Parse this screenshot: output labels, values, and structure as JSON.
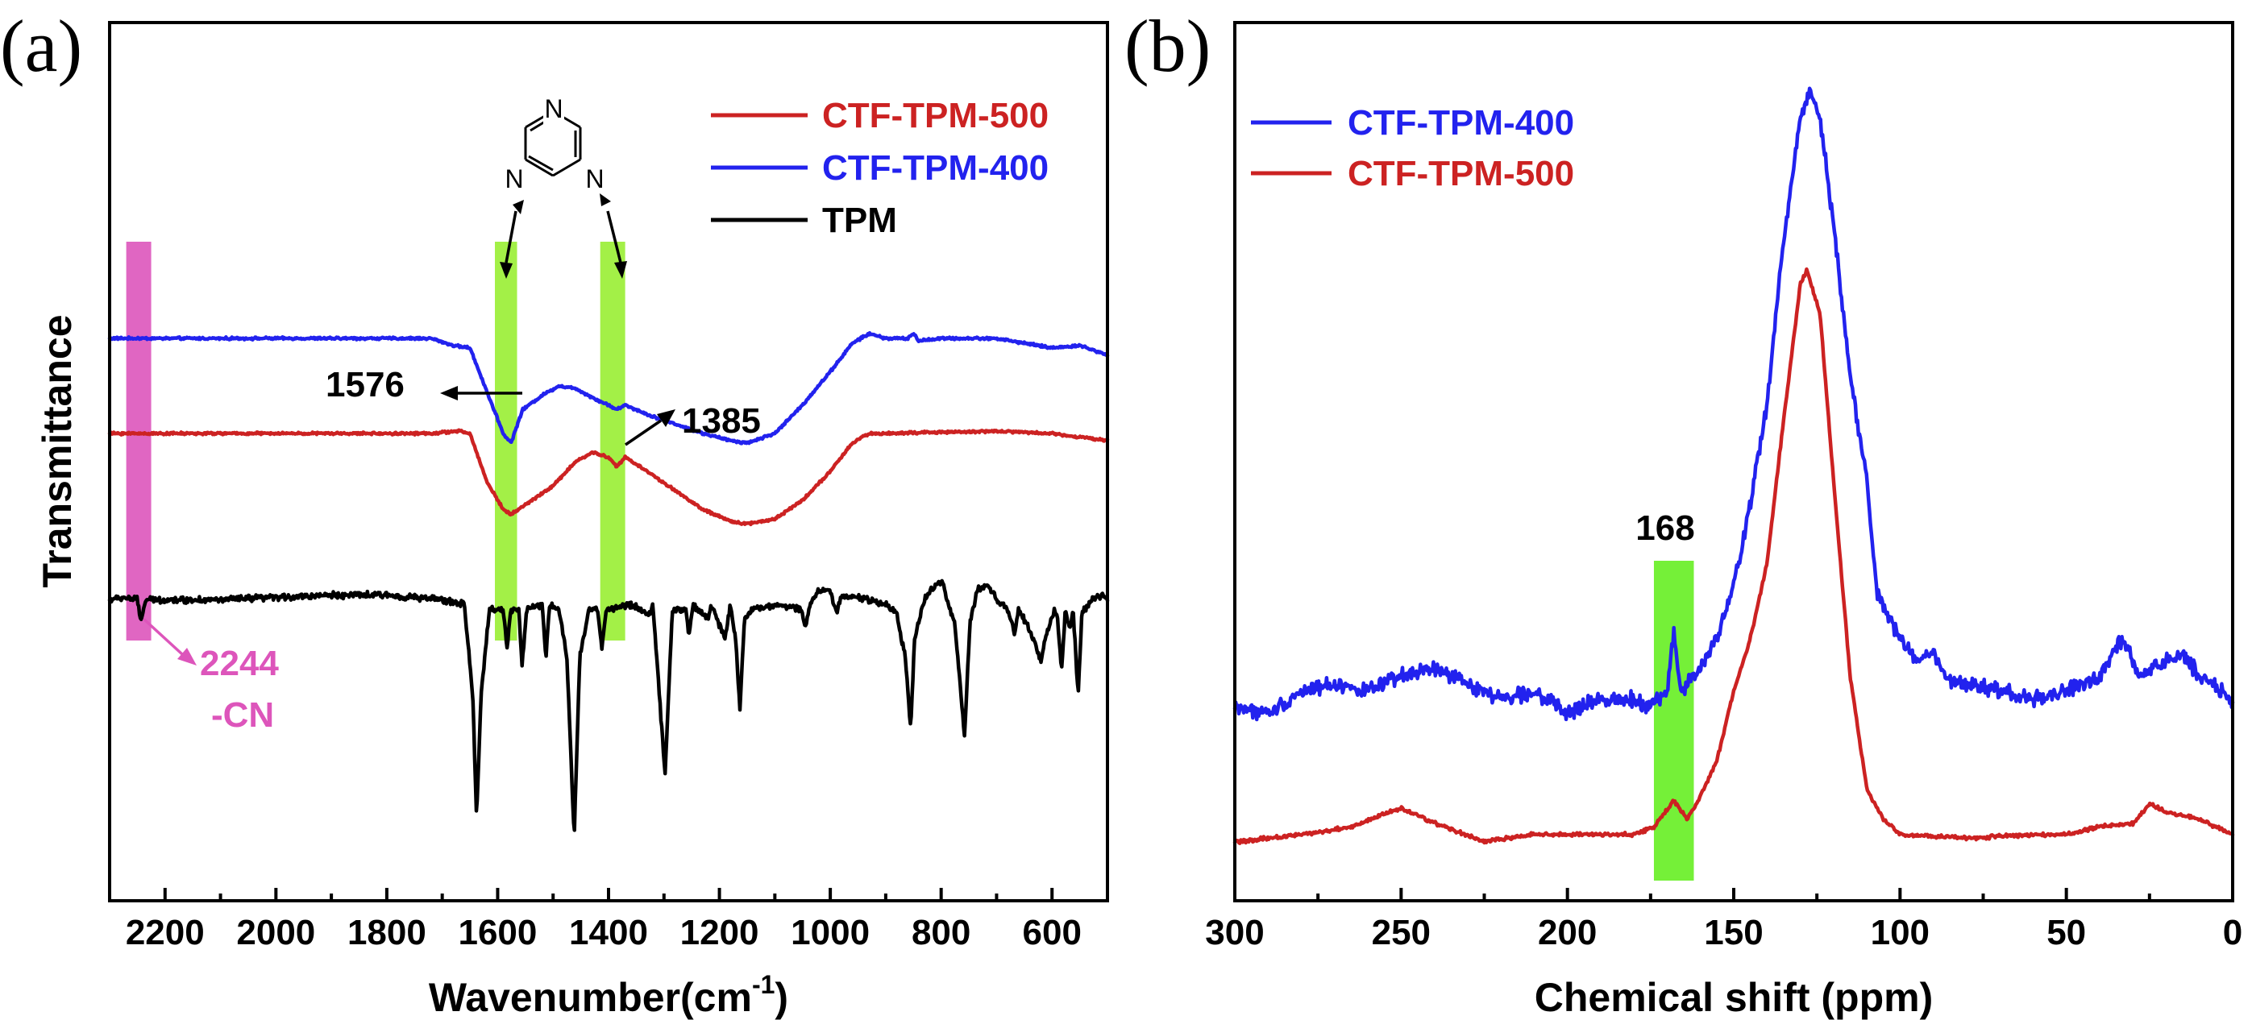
{
  "chart_data": [
    {
      "panel": "(a)",
      "type": "line",
      "xlabel": "Wavenumber(cm",
      "xlabel_sup": "-1",
      "xlabel_end": ")",
      "ylabel": "Transmittance",
      "xlim": [
        2300,
        500
      ],
      "x_reversed": true,
      "y_ticks": false,
      "x_ticks": [
        2200,
        2000,
        1800,
        1600,
        1400,
        1200,
        1000,
        800,
        600
      ],
      "x_tick_labels": [
        "2200",
        "2000",
        "1800",
        "1600",
        "1400",
        "1200",
        "1000",
        "800",
        "600"
      ],
      "legend": {
        "placement": "top-right",
        "entries": [
          {
            "name": "CTF-TPM-500",
            "color": "#cc2222"
          },
          {
            "name": "CTF-TPM-400",
            "color": "#2222ee"
          },
          {
            "name": "TPM",
            "color": "#000000"
          }
        ]
      },
      "series": [
        {
          "name": "CTF-TPM-400",
          "color": "#2222ee",
          "base": 1.0,
          "noise": 0.003,
          "points": [
            [
              2300,
              0.0
            ],
            [
              1720,
              0.0
            ],
            [
              1680,
              -0.015
            ],
            [
              1650,
              -0.02
            ],
            [
              1620,
              -0.11
            ],
            [
              1590,
              -0.2
            ],
            [
              1576,
              -0.22
            ],
            [
              1555,
              -0.15
            ],
            [
              1520,
              -0.12
            ],
            [
              1490,
              -0.1
            ],
            [
              1460,
              -0.105
            ],
            [
              1420,
              -0.13
            ],
            [
              1400,
              -0.14
            ],
            [
              1385,
              -0.15
            ],
            [
              1370,
              -0.14
            ],
            [
              1330,
              -0.16
            ],
            [
              1280,
              -0.18
            ],
            [
              1230,
              -0.2
            ],
            [
              1180,
              -0.215
            ],
            [
              1150,
              -0.22
            ],
            [
              1100,
              -0.2
            ],
            [
              1050,
              -0.14
            ],
            [
              1000,
              -0.07
            ],
            [
              960,
              -0.01
            ],
            [
              930,
              0.01
            ],
            [
              900,
              0.0
            ],
            [
              860,
              0.0
            ],
            [
              850,
              0.01
            ],
            [
              840,
              -0.005
            ],
            [
              800,
              0.0
            ],
            [
              700,
              0.0
            ],
            [
              600,
              -0.02
            ],
            [
              550,
              -0.015
            ],
            [
              500,
              -0.035
            ]
          ]
        },
        {
          "name": "CTF-TPM-500",
          "color": "#cc2222",
          "base": 0.8,
          "noise": 0.003,
          "points": [
            [
              2300,
              0.0
            ],
            [
              1720,
              0.0
            ],
            [
              1670,
              0.005
            ],
            [
              1650,
              0.0
            ],
            [
              1620,
              -0.1
            ],
            [
              1590,
              -0.16
            ],
            [
              1576,
              -0.17
            ],
            [
              1550,
              -0.15
            ],
            [
              1500,
              -0.11
            ],
            [
              1460,
              -0.06
            ],
            [
              1430,
              -0.04
            ],
            [
              1400,
              -0.05
            ],
            [
              1385,
              -0.07
            ],
            [
              1370,
              -0.05
            ],
            [
              1330,
              -0.08
            ],
            [
              1280,
              -0.12
            ],
            [
              1230,
              -0.16
            ],
            [
              1180,
              -0.185
            ],
            [
              1150,
              -0.19
            ],
            [
              1100,
              -0.18
            ],
            [
              1050,
              -0.14
            ],
            [
              1000,
              -0.08
            ],
            [
              960,
              -0.02
            ],
            [
              930,
              0.0
            ],
            [
              900,
              0.0
            ],
            [
              700,
              0.005
            ],
            [
              600,
              0.0
            ],
            [
              500,
              -0.015
            ]
          ]
        },
        {
          "name": "TPM",
          "color": "#000000",
          "base": 0.45,
          "noise": 0.008,
          "points": [
            [
              2300,
              0.0
            ],
            [
              2270,
              0.005
            ],
            [
              2250,
              0.0
            ],
            [
              2244,
              -0.045
            ],
            [
              2235,
              0.0
            ],
            [
              2100,
              0.0
            ],
            [
              2000,
              0.005
            ],
            [
              1900,
              0.01
            ],
            [
              1800,
              0.01
            ],
            [
              1700,
              0.0
            ],
            [
              1660,
              -0.01
            ],
            [
              1645,
              -0.2
            ],
            [
              1638,
              -0.46
            ],
            [
              1630,
              -0.2
            ],
            [
              1615,
              -0.02
            ],
            [
              1590,
              -0.02
            ],
            [
              1583,
              -0.1
            ],
            [
              1576,
              -0.02
            ],
            [
              1562,
              -0.02
            ],
            [
              1556,
              -0.14
            ],
            [
              1548,
              -0.02
            ],
            [
              1520,
              -0.01
            ],
            [
              1513,
              -0.12
            ],
            [
              1506,
              -0.01
            ],
            [
              1490,
              -0.02
            ],
            [
              1475,
              -0.12
            ],
            [
              1462,
              -0.5
            ],
            [
              1452,
              -0.12
            ],
            [
              1435,
              -0.02
            ],
            [
              1420,
              -0.02
            ],
            [
              1412,
              -0.1
            ],
            [
              1404,
              -0.02
            ],
            [
              1360,
              -0.01
            ],
            [
              1325,
              -0.03
            ],
            [
              1320,
              -0.01
            ],
            [
              1298,
              -0.37
            ],
            [
              1285,
              -0.02
            ],
            [
              1260,
              -0.02
            ],
            [
              1255,
              -0.08
            ],
            [
              1248,
              -0.01
            ],
            [
              1220,
              -0.04
            ],
            [
              1215,
              -0.01
            ],
            [
              1190,
              -0.08
            ],
            [
              1180,
              -0.01
            ],
            [
              1170,
              -0.09
            ],
            [
              1163,
              -0.23
            ],
            [
              1155,
              -0.04
            ],
            [
              1140,
              -0.02
            ],
            [
              1100,
              -0.01
            ],
            [
              1052,
              -0.02
            ],
            [
              1045,
              -0.06
            ],
            [
              1038,
              -0.01
            ],
            [
              1020,
              0.02
            ],
            [
              1000,
              0.02
            ],
            [
              988,
              -0.03
            ],
            [
              980,
              0.01
            ],
            [
              930,
              0.0
            ],
            [
              900,
              -0.01
            ],
            [
              880,
              -0.03
            ],
            [
              865,
              -0.12
            ],
            [
              855,
              -0.27
            ],
            [
              848,
              -0.08
            ],
            [
              830,
              0.0
            ],
            [
              812,
              0.03
            ],
            [
              798,
              0.04
            ],
            [
              790,
              0.0
            ],
            [
              775,
              -0.05
            ],
            [
              758,
              -0.29
            ],
            [
              748,
              -0.05
            ],
            [
              735,
              0.02
            ],
            [
              715,
              0.03
            ],
            [
              700,
              0.0
            ],
            [
              680,
              -0.02
            ],
            [
              668,
              -0.07
            ],
            [
              660,
              -0.02
            ],
            [
              642,
              -0.06
            ],
            [
              635,
              -0.08
            ],
            [
              620,
              -0.13
            ],
            [
              612,
              -0.08
            ],
            [
              595,
              -0.02
            ],
            [
              590,
              -0.04
            ],
            [
              583,
              -0.15
            ],
            [
              576,
              -0.02
            ],
            [
              568,
              -0.06
            ],
            [
              562,
              -0.02
            ],
            [
              553,
              -0.2
            ],
            [
              546,
              -0.03
            ],
            [
              530,
              0.0
            ],
            [
              510,
              0.01
            ],
            [
              500,
              0.0
            ]
          ]
        }
      ],
      "annotations": [
        {
          "text": "1576",
          "color": "#000000"
        },
        {
          "text": "1385",
          "color": "#000000"
        },
        {
          "text": "2244",
          "color": "#dd55bb"
        },
        {
          "text": "-CN",
          "color": "#dd55bb"
        }
      ],
      "highlights": [
        {
          "x_range": [
            2270,
            2225
          ],
          "color": "#dd55bb"
        },
        {
          "x_range": [
            1605,
            1565
          ],
          "color": "#99ee33"
        },
        {
          "x_range": [
            1415,
            1370
          ],
          "color": "#99ee33"
        }
      ],
      "structure": {
        "atom_label": "N",
        "type": "triazine"
      }
    },
    {
      "panel": "(b)",
      "type": "line",
      "xlabel": "Chemical shift (ppm)",
      "ylabel": "",
      "xlim": [
        300,
        0
      ],
      "x_reversed": true,
      "y_ticks": false,
      "x_ticks": [
        300,
        250,
        200,
        150,
        100,
        50,
        0
      ],
      "x_tick_labels": [
        "300",
        "250",
        "200",
        "150",
        "100",
        "50",
        "0"
      ],
      "legend": {
        "placement": "top-left",
        "entries": [
          {
            "name": "CTF-TPM-400",
            "color": "#2222ee"
          },
          {
            "name": "CTF-TPM-500",
            "color": "#cc2222"
          }
        ]
      },
      "series": [
        {
          "name": "CTF-TPM-400",
          "color": "#2222ee",
          "base": 0.0,
          "noise": 0.012,
          "points": [
            [
              300,
              0.18
            ],
            [
              290,
              0.17
            ],
            [
              280,
              0.2
            ],
            [
              270,
              0.21
            ],
            [
              260,
              0.2
            ],
            [
              250,
              0.22
            ],
            [
              240,
              0.23
            ],
            [
              230,
              0.21
            ],
            [
              220,
              0.19
            ],
            [
              210,
              0.2
            ],
            [
              200,
              0.17
            ],
            [
              190,
              0.19
            ],
            [
              180,
              0.19
            ],
            [
              175,
              0.18
            ],
            [
              170,
              0.2
            ],
            [
              168,
              0.28
            ],
            [
              166,
              0.2
            ],
            [
              160,
              0.23
            ],
            [
              155,
              0.27
            ],
            [
              150,
              0.34
            ],
            [
              145,
              0.45
            ],
            [
              140,
              0.58
            ],
            [
              135,
              0.8
            ],
            [
              130,
              0.96
            ],
            [
              127,
              1.0
            ],
            [
              124,
              0.96
            ],
            [
              120,
              0.82
            ],
            [
              115,
              0.62
            ],
            [
              110,
              0.48
            ],
            [
              107,
              0.33
            ],
            [
              100,
              0.27
            ],
            [
              95,
              0.24
            ],
            [
              90,
              0.25
            ],
            [
              85,
              0.21
            ],
            [
              80,
              0.21
            ],
            [
              70,
              0.2
            ],
            [
              60,
              0.19
            ],
            [
              50,
              0.2
            ],
            [
              40,
              0.22
            ],
            [
              33,
              0.27
            ],
            [
              28,
              0.22
            ],
            [
              20,
              0.24
            ],
            [
              15,
              0.25
            ],
            [
              10,
              0.22
            ],
            [
              5,
              0.21
            ],
            [
              0,
              0.18
            ]
          ]
        },
        {
          "name": "CTF-TPM-500",
          "color": "#cc2222",
          "base": 0.0,
          "noise": 0.003,
          "points": [
            [
              300,
              0.0
            ],
            [
              280,
              0.01
            ],
            [
              265,
              0.02
            ],
            [
              250,
              0.045
            ],
            [
              240,
              0.025
            ],
            [
              225,
              0.0
            ],
            [
              210,
              0.01
            ],
            [
              190,
              0.01
            ],
            [
              180,
              0.01
            ],
            [
              174,
              0.02
            ],
            [
              168,
              0.055
            ],
            [
              164,
              0.03
            ],
            [
              160,
              0.06
            ],
            [
              155,
              0.11
            ],
            [
              150,
              0.2
            ],
            [
              145,
              0.27
            ],
            [
              140,
              0.37
            ],
            [
              135,
              0.56
            ],
            [
              130,
              0.74
            ],
            [
              128,
              0.76
            ],
            [
              124,
              0.7
            ],
            [
              120,
              0.48
            ],
            [
              115,
              0.22
            ],
            [
              110,
              0.07
            ],
            [
              105,
              0.03
            ],
            [
              100,
              0.01
            ],
            [
              80,
              0.005
            ],
            [
              60,
              0.01
            ],
            [
              50,
              0.01
            ],
            [
              40,
              0.02
            ],
            [
              30,
              0.025
            ],
            [
              25,
              0.05
            ],
            [
              20,
              0.04
            ],
            [
              10,
              0.03
            ],
            [
              0,
              0.01
            ]
          ]
        }
      ],
      "annotations": [
        {
          "text": "168",
          "color": "#000000"
        }
      ],
      "highlights": [
        {
          "x_range": [
            174,
            162
          ],
          "color": "#66ee22"
        }
      ]
    }
  ]
}
